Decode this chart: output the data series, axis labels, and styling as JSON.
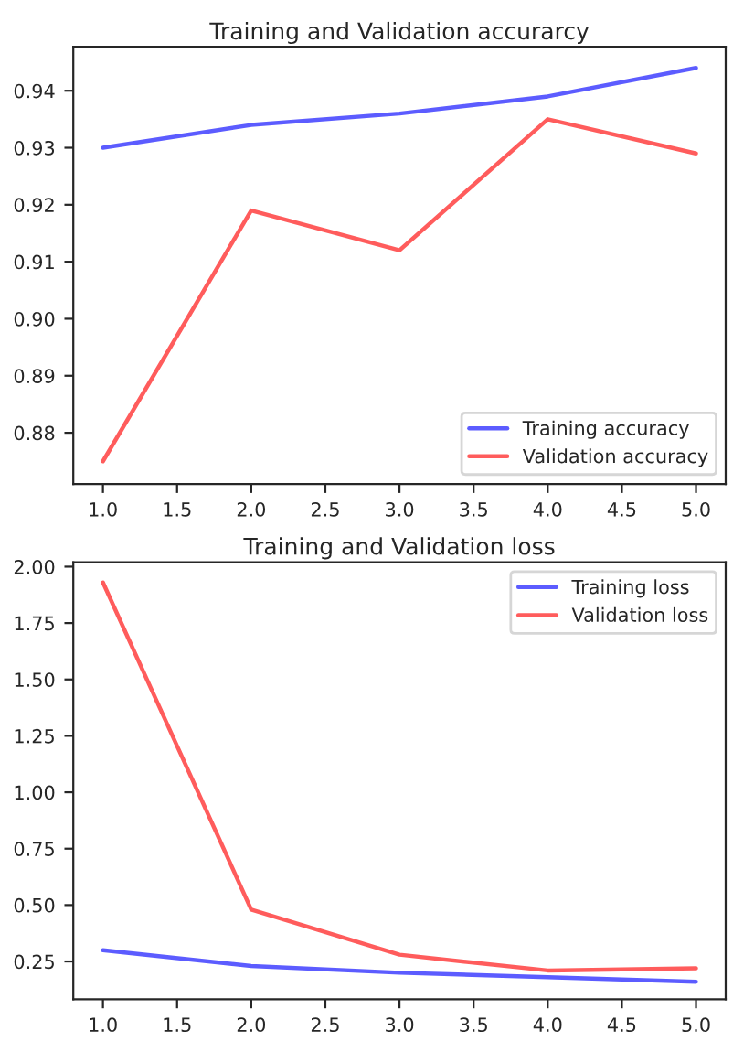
{
  "chart_data": [
    {
      "type": "line",
      "title": "Training and Validation accurarcy",
      "x": [
        1,
        2,
        3,
        4,
        5
      ],
      "series": [
        {
          "name": "Training accuracy",
          "color": "#4040ff",
          "values": [
            0.93,
            0.934,
            0.936,
            0.939,
            0.944
          ]
        },
        {
          "name": "Validation accuracy",
          "color": "#ff4040",
          "values": [
            0.875,
            0.919,
            0.912,
            0.935,
            0.929
          ]
        }
      ],
      "xlim": [
        0.8,
        5.2
      ],
      "xticks": [
        {
          "value": 1,
          "label": "1.0"
        },
        1.5,
        {
          "value": 2,
          "label": "2.0"
        },
        2.5,
        {
          "value": 3,
          "label": "3.0"
        },
        3.5,
        {
          "value": 4,
          "label": "4.0"
        },
        4.5,
        {
          "value": 5,
          "label": "5.0"
        }
      ],
      "ylim": [
        0.871,
        0.9477
      ],
      "yticks": [
        0.88,
        {
          "value": 0.89,
          "label": "0.89"
        },
        {
          "value": 0.9,
          "label": "0.90"
        },
        0.91,
        0.92,
        0.93,
        0.94
      ],
      "legend": "lower right",
      "grid": false
    },
    {
      "type": "line",
      "title": "Training and Validation loss",
      "x": [
        1,
        2,
        3,
        4,
        5
      ],
      "series": [
        {
          "name": "Training loss",
          "color": "#4040ff",
          "values": [
            0.3,
            0.23,
            0.2,
            0.18,
            0.16
          ]
        },
        {
          "name": "Validation loss",
          "color": "#ff4040",
          "values": [
            1.93,
            0.48,
            0.28,
            0.21,
            0.22
          ]
        }
      ],
      "xlim": [
        0.8,
        5.2
      ],
      "xticks": [
        {
          "value": 1,
          "label": "1.0"
        },
        1.5,
        {
          "value": 2,
          "label": "2.0"
        },
        2.5,
        {
          "value": 3,
          "label": "3.0"
        },
        3.5,
        {
          "value": 4,
          "label": "4.0"
        },
        4.5,
        {
          "value": 5,
          "label": "5.0"
        }
      ],
      "ylim": [
        0.082,
        2.02
      ],
      "yticks": [
        {
          "value": 0.25,
          "label": "0.25"
        },
        {
          "value": 0.5,
          "label": "0.50"
        },
        {
          "value": 0.75,
          "label": "0.75"
        },
        {
          "value": 1.0,
          "label": "1.00"
        },
        {
          "value": 1.25,
          "label": "1.25"
        },
        {
          "value": 1.5,
          "label": "1.50"
        },
        {
          "value": 1.75,
          "label": "1.75"
        },
        {
          "value": 2.0,
          "label": "2.00"
        }
      ],
      "legend": "upper right",
      "grid": false
    }
  ]
}
